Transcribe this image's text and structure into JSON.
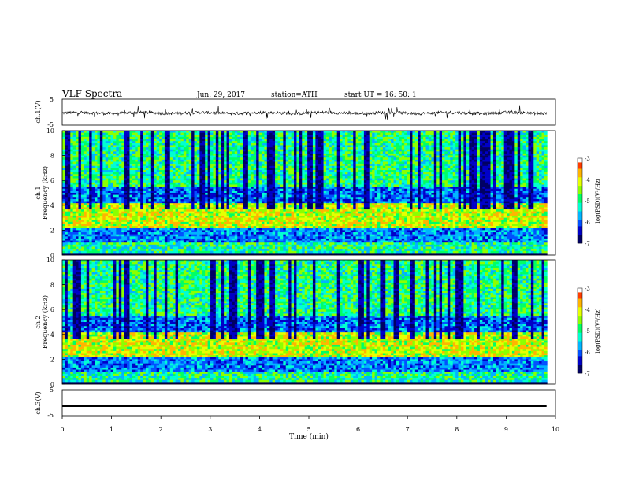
{
  "header": {
    "title": "VLF  Spectra",
    "date": "Jun. 29, 2017",
    "station": "station=ATH",
    "start": "start  UT  =    16: 50: 1"
  },
  "colorbar_label": "log(PSD)(V²/Hz)",
  "colors": {
    "spectrogram_scale": [
      "#000080",
      "#0000ff",
      "#0080ff",
      "#00ffff",
      "#00ff80",
      "#80ff00",
      "#ffff00",
      "#ff8000",
      "#ff0000",
      "#ffffff"
    ]
  },
  "chart_data": [
    {
      "type": "line",
      "name": "ch1-waveform",
      "ylabel": "ch.1(V)",
      "ylim": [
        -5,
        5
      ],
      "yticks": [
        "5",
        "-5"
      ],
      "xlim": [
        0,
        10
      ],
      "description_values": "noisy waveform with offset near -0.3 V and sporadic spikes",
      "baseline": -0.3
    },
    {
      "type": "heatmap",
      "name": "ch1-spectrogram",
      "ylabel": "ch.1\nFrequency (kHz)",
      "ylim": [
        0,
        10
      ],
      "yticks": [
        "0",
        "2",
        "4",
        "6",
        "8",
        "10"
      ],
      "xlim": [
        0,
        9.83
      ],
      "zlim": [
        -7,
        -3
      ],
      "zticks": [
        "-3",
        "-4",
        "-5",
        "-6",
        "-7"
      ]
    },
    {
      "type": "heatmap",
      "name": "ch2-spectrogram",
      "ylabel": "ch.2\nFrequency (kHz)",
      "ylim": [
        0,
        10
      ],
      "yticks": [
        "0",
        "2",
        "4",
        "6",
        "8",
        "10"
      ],
      "xlim": [
        0,
        9.83
      ],
      "zlim": [
        -7,
        -3
      ],
      "zticks": [
        "-3",
        "-4",
        "-5",
        "-6",
        "-7"
      ]
    },
    {
      "type": "line",
      "name": "ch3-waveform",
      "ylabel": "ch.3(V)",
      "ylim": [
        -5,
        5
      ],
      "yticks": [
        "5",
        "-5"
      ],
      "xlim": [
        0,
        10
      ],
      "baseline": -1.2
    }
  ],
  "xaxis": {
    "label": "Time  (min)",
    "ticks": [
      "0",
      "1",
      "2",
      "3",
      "4",
      "5",
      "6",
      "7",
      "8",
      "9",
      "10"
    ]
  }
}
